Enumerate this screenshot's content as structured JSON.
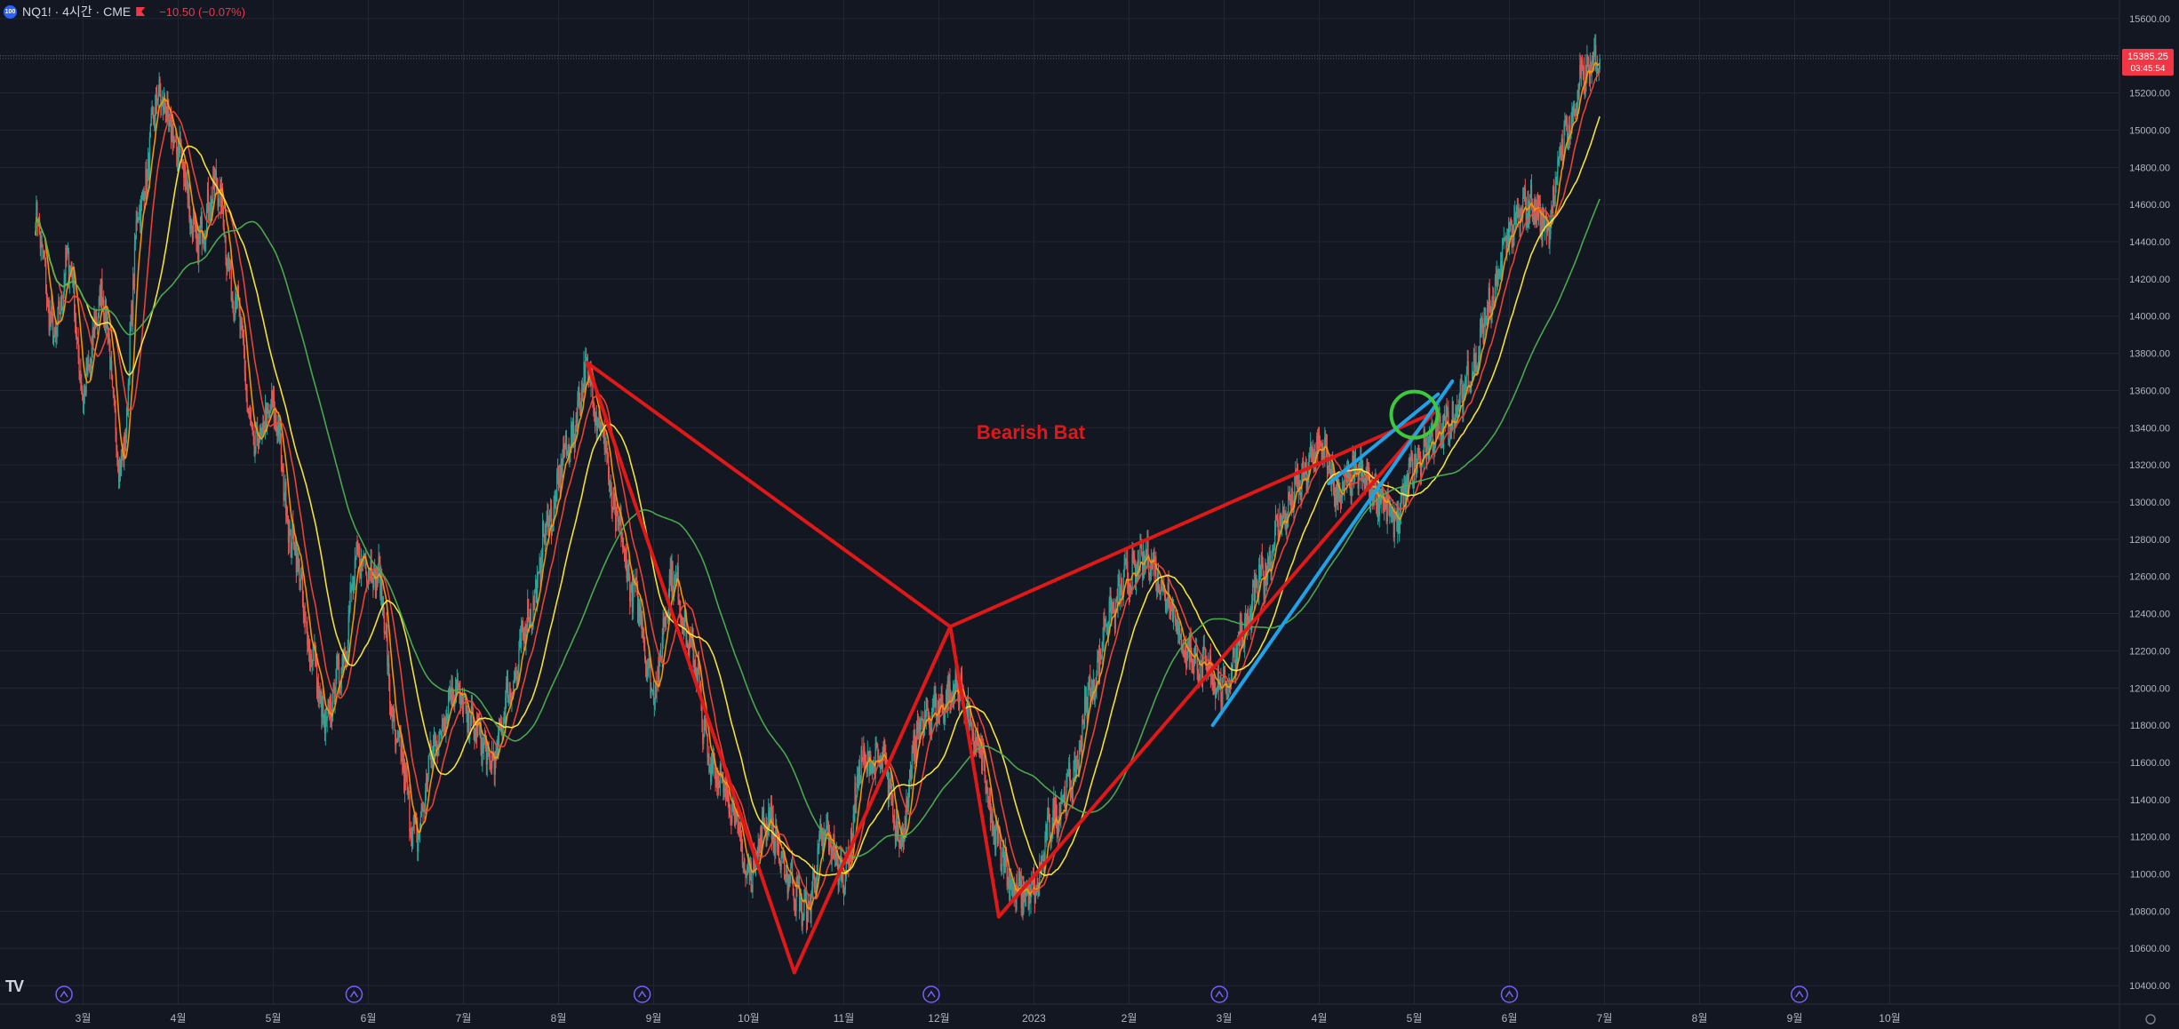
{
  "header": {
    "symbol_badge": "100",
    "title": "NQ1! · 4시간 · CME",
    "change": "−10.50 (−0.07%)"
  },
  "price_label": {
    "value": "15385.25",
    "countdown": "03:45:54"
  },
  "annotation": {
    "text": "Bearish Bat"
  },
  "logo": "TV",
  "colors": {
    "background": "#131722",
    "grid": "#232632",
    "axis_text": "#b2b5be",
    "up": "#26a69a",
    "down": "#ef5350",
    "pattern": "#e01818",
    "trend": "#1fa3e8",
    "circle": "#3cc93c",
    "ma_orange": "#ff9800",
    "ma_red": "#f44336",
    "ma_yellow": "#ffeb3b",
    "ma_green": "#4caf50",
    "event": "#7b5cff"
  },
  "chart_data": {
    "type": "line",
    "title": "",
    "xlabel": "",
    "ylabel": "",
    "ylim": [
      10300,
      15700
    ],
    "y_ticks": [
      10400,
      10600,
      10800,
      11000,
      11200,
      11400,
      11600,
      11800,
      12000,
      12200,
      12400,
      12600,
      12800,
      13000,
      13200,
      13400,
      13600,
      13800,
      14000,
      14200,
      14400,
      14600,
      14800,
      15000,
      15200,
      15400,
      15600
    ],
    "x_ticks": [
      "3월",
      "4월",
      "5월",
      "6월",
      "7월",
      "8월",
      "9월",
      "10월",
      "11월",
      "12월",
      "2023",
      "2월",
      "3월",
      "4월",
      "5월",
      "6월",
      "7월",
      "8월",
      "9월",
      "10월"
    ],
    "x_tick_index": [
      0.5,
      1.5,
      2.5,
      3.5,
      4.5,
      5.5,
      6.5,
      7.5,
      8.5,
      9.5,
      10.5,
      11.5,
      12.5,
      13.5,
      14.5,
      15.5,
      16.5,
      17.5,
      18.5,
      19.5
    ],
    "price_anchors": [
      [
        0.0,
        14520
      ],
      [
        0.2,
        13900
      ],
      [
        0.35,
        14300
      ],
      [
        0.5,
        13600
      ],
      [
        0.7,
        14100
      ],
      [
        0.9,
        13200
      ],
      [
        1.1,
        14600
      ],
      [
        1.3,
        15180
      ],
      [
        1.5,
        14900
      ],
      [
        1.7,
        14400
      ],
      [
        1.9,
        14700
      ],
      [
        2.1,
        14100
      ],
      [
        2.3,
        13300
      ],
      [
        2.5,
        13500
      ],
      [
        2.7,
        12800
      ],
      [
        2.9,
        12200
      ],
      [
        3.05,
        11800
      ],
      [
        3.2,
        12100
      ],
      [
        3.4,
        12700
      ],
      [
        3.6,
        12600
      ],
      [
        3.8,
        11700
      ],
      [
        4.0,
        11200
      ],
      [
        4.2,
        11700
      ],
      [
        4.4,
        12000
      ],
      [
        4.6,
        11800
      ],
      [
        4.8,
        11600
      ],
      [
        5.0,
        12000
      ],
      [
        5.2,
        12400
      ],
      [
        5.4,
        12900
      ],
      [
        5.6,
        13300
      ],
      [
        5.8,
        13700
      ],
      [
        5.95,
        13400
      ],
      [
        6.1,
        12900
      ],
      [
        6.3,
        12500
      ],
      [
        6.5,
        12000
      ],
      [
        6.7,
        12600
      ],
      [
        6.9,
        12200
      ],
      [
        7.1,
        11600
      ],
      [
        7.3,
        11400
      ],
      [
        7.5,
        11000
      ],
      [
        7.7,
        11300
      ],
      [
        7.9,
        11000
      ],
      [
        8.1,
        10800
      ],
      [
        8.3,
        11200
      ],
      [
        8.5,
        11000
      ],
      [
        8.7,
        11600
      ],
      [
        8.9,
        11600
      ],
      [
        9.1,
        11200
      ],
      [
        9.3,
        11800
      ],
      [
        9.5,
        11900
      ],
      [
        9.7,
        12000
      ],
      [
        9.9,
        11700
      ],
      [
        10.1,
        11200
      ],
      [
        10.3,
        10900
      ],
      [
        10.5,
        10900
      ],
      [
        10.7,
        11300
      ],
      [
        10.9,
        11500
      ],
      [
        11.1,
        12000
      ],
      [
        11.3,
        12400
      ],
      [
        11.5,
        12600
      ],
      [
        11.7,
        12700
      ],
      [
        11.9,
        12500
      ],
      [
        12.1,
        12200
      ],
      [
        12.3,
        12100
      ],
      [
        12.5,
        12000
      ],
      [
        12.7,
        12300
      ],
      [
        12.9,
        12600
      ],
      [
        13.1,
        12900
      ],
      [
        13.3,
        13100
      ],
      [
        13.5,
        13300
      ],
      [
        13.7,
        13050
      ],
      [
        13.9,
        13150
      ],
      [
        14.1,
        13050
      ],
      [
        14.3,
        12900
      ],
      [
        14.5,
        13200
      ],
      [
        14.7,
        13350
      ],
      [
        14.9,
        13450
      ],
      [
        15.1,
        13700
      ],
      [
        15.3,
        14050
      ],
      [
        15.5,
        14450
      ],
      [
        15.7,
        14600
      ],
      [
        15.9,
        14500
      ],
      [
        16.1,
        15000
      ],
      [
        16.3,
        15300
      ],
      [
        16.45,
        15385
      ]
    ],
    "series": [
      {
        "period": 12,
        "color": "#ff9800"
      },
      {
        "period": 30,
        "color": "#f44336"
      },
      {
        "period": 65,
        "color": "#ffeb3b"
      },
      {
        "period": 160,
        "color": "#4caf50"
      }
    ],
    "last_price": 15385.25,
    "pattern_points": [
      [
        5.8,
        13750
      ],
      [
        7.98,
        10470
      ],
      [
        9.62,
        12330
      ],
      [
        10.13,
        10770
      ],
      [
        14.7,
        13480
      ]
    ],
    "trendlines": [
      {
        "x1": 12.38,
        "y1": 11800,
        "x2": 14.9,
        "y2": 13650
      },
      {
        "x1": 13.6,
        "y1": 13100,
        "x2": 14.75,
        "y2": 13580
      }
    ],
    "circle": {
      "x": 14.5,
      "y": 13470
    },
    "event_markers": [
      0.3,
      3.35,
      6.38,
      9.42,
      12.45,
      15.5,
      18.55
    ]
  }
}
